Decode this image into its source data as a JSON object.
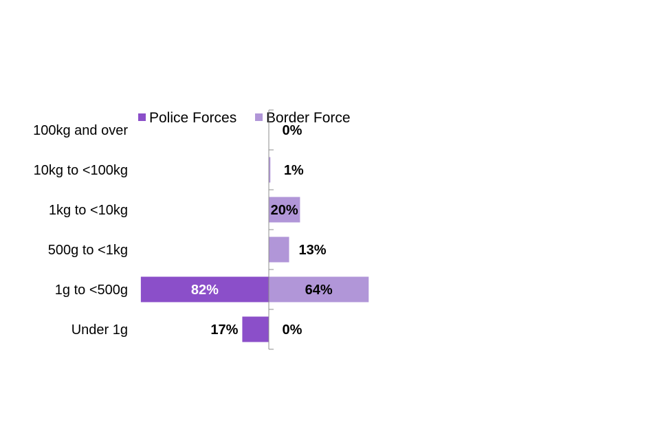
{
  "chart_data": {
    "type": "bar",
    "orientation": "horizontal-diverging",
    "categories": [
      "100kg and over",
      "10kg to <100kg",
      "1kg to <10kg",
      "500g to <1kg",
      "1g to <500g",
      "Under 1g"
    ],
    "series": [
      {
        "name": "Police Forces",
        "values": [
          0,
          0,
          0,
          0,
          82,
          17
        ],
        "labels": [
          "",
          "",
          "",
          "",
          "82%",
          "17%"
        ],
        "color": "#8b4fc9",
        "direction": "left"
      },
      {
        "name": "Border Force",
        "values": [
          0,
          1,
          20,
          13,
          64,
          0
        ],
        "labels": [
          "0%",
          "1%",
          "20%",
          "13%",
          "64%",
          "0%"
        ],
        "color": "#b196d8",
        "direction": "right"
      }
    ],
    "unit": "%",
    "xlim": [
      -100,
      100
    ],
    "legend_position": "top",
    "grid": false
  }
}
